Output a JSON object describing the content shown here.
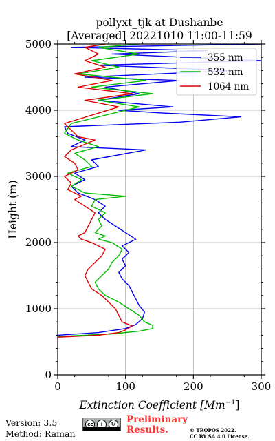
{
  "chart_data": {
    "type": "line",
    "title_line1": "pollyxt_tjk at Dushanbe",
    "title_line2": "[Averaged] 20221010 11:00-11:59",
    "xlabel": "Extinction Coefficient [Mm",
    "xlabel_sup": "−1",
    "xlabel_end": "]",
    "ylabel": "Height (m)",
    "xlim": [
      0,
      300
    ],
    "ylim": [
      0,
      5000
    ],
    "xticks": [
      0,
      100,
      200,
      300
    ],
    "yticks": [
      0,
      1000,
      2000,
      3000,
      4000,
      5000
    ],
    "grid": true,
    "legend_position": "top-right",
    "series": [
      {
        "name": "355 nm",
        "color": "#0000ee",
        "points": [
          [
            0,
            600
          ],
          [
            60,
            640
          ],
          [
            100,
            700
          ],
          [
            115,
            760
          ],
          [
            125,
            850
          ],
          [
            128,
            950
          ],
          [
            120,
            1050
          ],
          [
            115,
            1150
          ],
          [
            110,
            1250
          ],
          [
            105,
            1350
          ],
          [
            95,
            1450
          ],
          [
            90,
            1550
          ],
          [
            100,
            1650
          ],
          [
            95,
            1750
          ],
          [
            105,
            1850
          ],
          [
            95,
            1950
          ],
          [
            115,
            2050
          ],
          [
            100,
            2150
          ],
          [
            85,
            2250
          ],
          [
            70,
            2350
          ],
          [
            60,
            2450
          ],
          [
            70,
            2550
          ],
          [
            55,
            2650
          ],
          [
            30,
            2750
          ],
          [
            20,
            2850
          ],
          [
            40,
            2950
          ],
          [
            25,
            3050
          ],
          [
            60,
            3150
          ],
          [
            50,
            3250
          ],
          [
            130,
            3400
          ],
          [
            20,
            3450
          ],
          [
            40,
            3550
          ],
          [
            15,
            3650
          ],
          [
            10,
            3750
          ],
          [
            180,
            3820
          ],
          [
            270,
            3900
          ],
          [
            150,
            3960
          ],
          [
            90,
            4000
          ],
          [
            170,
            4050
          ],
          [
            60,
            4150
          ],
          [
            120,
            4250
          ],
          [
            70,
            4350
          ],
          [
            180,
            4450
          ],
          [
            40,
            4500
          ],
          [
            260,
            4600
          ],
          [
            60,
            4680
          ],
          [
            300,
            4750
          ],
          [
            80,
            4850
          ],
          [
            220,
            4900
          ],
          [
            20,
            4950
          ],
          [
            300,
            5000
          ]
        ]
      },
      {
        "name": "532 nm",
        "color": "#00bb00",
        "points": [
          [
            0,
            580
          ],
          [
            80,
            620
          ],
          [
            120,
            660
          ],
          [
            140,
            700
          ],
          [
            140,
            750
          ],
          [
            128,
            800
          ],
          [
            120,
            900
          ],
          [
            105,
            1000
          ],
          [
            90,
            1100
          ],
          [
            70,
            1200
          ],
          [
            60,
            1300
          ],
          [
            55,
            1400
          ],
          [
            65,
            1500
          ],
          [
            75,
            1600
          ],
          [
            80,
            1700
          ],
          [
            90,
            1800
          ],
          [
            95,
            1900
          ],
          [
            80,
            2000
          ],
          [
            60,
            2050
          ],
          [
            70,
            2100
          ],
          [
            55,
            2150
          ],
          [
            65,
            2250
          ],
          [
            60,
            2350
          ],
          [
            70,
            2450
          ],
          [
            50,
            2550
          ],
          [
            55,
            2650
          ],
          [
            100,
            2700
          ],
          [
            40,
            2750
          ],
          [
            20,
            2850
          ],
          [
            35,
            2950
          ],
          [
            15,
            3050
          ],
          [
            50,
            3150
          ],
          [
            40,
            3250
          ],
          [
            25,
            3350
          ],
          [
            60,
            3450
          ],
          [
            30,
            3550
          ],
          [
            10,
            3650
          ],
          [
            20,
            3800
          ],
          [
            120,
            4050
          ],
          [
            60,
            4150
          ],
          [
            140,
            4250
          ],
          [
            50,
            4350
          ],
          [
            130,
            4450
          ],
          [
            30,
            4550
          ],
          [
            90,
            4650
          ],
          [
            50,
            4750
          ],
          [
            120,
            4850
          ],
          [
            60,
            4950
          ],
          [
            120,
            5000
          ]
        ]
      },
      {
        "name": "1064 nm",
        "color": "#dd0000",
        "points": [
          [
            0,
            570
          ],
          [
            60,
            600
          ],
          [
            90,
            640
          ],
          [
            100,
            680
          ],
          [
            110,
            740
          ],
          [
            95,
            800
          ],
          [
            90,
            900
          ],
          [
            85,
            1000
          ],
          [
            75,
            1100
          ],
          [
            65,
            1200
          ],
          [
            50,
            1300
          ],
          [
            45,
            1400
          ],
          [
            40,
            1500
          ],
          [
            45,
            1600
          ],
          [
            55,
            1700
          ],
          [
            65,
            1800
          ],
          [
            70,
            1900
          ],
          [
            50,
            2000
          ],
          [
            35,
            2050
          ],
          [
            30,
            2100
          ],
          [
            40,
            2150
          ],
          [
            45,
            2250
          ],
          [
            50,
            2350
          ],
          [
            55,
            2450
          ],
          [
            40,
            2550
          ],
          [
            25,
            2650
          ],
          [
            35,
            2700
          ],
          [
            15,
            2800
          ],
          [
            20,
            2900
          ],
          [
            10,
            3000
          ],
          [
            30,
            3100
          ],
          [
            25,
            3200
          ],
          [
            10,
            3300
          ],
          [
            20,
            3400
          ],
          [
            55,
            3550
          ],
          [
            30,
            3600
          ],
          [
            20,
            3700
          ],
          [
            10,
            3800
          ],
          [
            90,
            4050
          ],
          [
            40,
            4150
          ],
          [
            110,
            4250
          ],
          [
            30,
            4350
          ],
          [
            80,
            4450
          ],
          [
            25,
            4550
          ],
          [
            70,
            4650
          ],
          [
            40,
            4750
          ],
          [
            60,
            4850
          ],
          [
            40,
            4950
          ],
          [
            70,
            5000
          ]
        ]
      }
    ]
  },
  "footer": {
    "version": "Version: 3.5",
    "method": "Method: Raman",
    "cc_icons": [
      "cc",
      "by",
      "sa"
    ],
    "preliminary_line1": "Preliminary",
    "preliminary_line2": "Results.",
    "copyright_line1": "© TROPOS 2022.",
    "copyright_line2": "CC BY SA 4.0 License."
  }
}
